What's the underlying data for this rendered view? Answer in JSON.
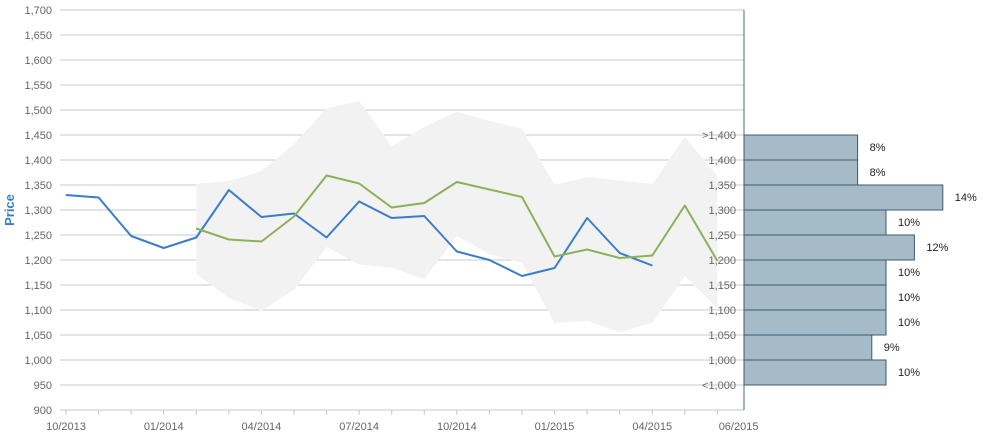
{
  "chart_data": {
    "type": "line",
    "ylabel": "Price",
    "ylim": [
      900,
      1700
    ],
    "y_ticks": [
      "900",
      "950",
      "1,000",
      "1,050",
      "1,100",
      "1,150",
      "1,200",
      "1,250",
      "1,300",
      "1,350",
      "1,400",
      "1,450",
      "1,500",
      "1,550",
      "1,600",
      "1,650",
      "1,700"
    ],
    "x_tick_labels": [
      "10/2013",
      "01/2014",
      "04/2014",
      "07/2014",
      "10/2014",
      "01/2015",
      "04/2015",
      "06/2015"
    ],
    "x_months": [
      "2013-10",
      "2013-11",
      "2013-12",
      "2014-01",
      "2014-02",
      "2014-03",
      "2014-04",
      "2014-05",
      "2014-06",
      "2014-07",
      "2014-08",
      "2014-09",
      "2014-10",
      "2014-11",
      "2014-12",
      "2015-01",
      "2015-02",
      "2015-03",
      "2015-04",
      "2015-05",
      "2015-06"
    ],
    "series": [
      {
        "color": "#3a7dc9",
        "x": [
          "2013-10",
          "2013-11",
          "2013-12",
          "2014-01",
          "2014-02",
          "2014-03",
          "2014-04",
          "2014-05",
          "2014-06",
          "2014-07",
          "2014-08",
          "2014-09",
          "2014-10",
          "2014-11",
          "2014-12",
          "2015-01",
          "2015-02",
          "2015-03",
          "2015-04"
        ],
        "values": [
          1330,
          1325,
          1248,
          1224,
          1245,
          1340,
          1286,
          1293,
          1245,
          1317,
          1284,
          1288,
          1217,
          1200,
          1168,
          1184,
          1284,
          1214,
          1189
        ]
      },
      {
        "color": "#8db05a",
        "x": [
          "2014-02",
          "2014-03",
          "2014-04",
          "2014-05",
          "2014-06",
          "2014-07",
          "2014-08",
          "2014-09",
          "2014-10",
          "2014-11",
          "2014-12",
          "2015-01",
          "2015-02",
          "2015-03",
          "2015-04",
          "2015-05",
          "2015-06"
        ],
        "values": [
          1263,
          1241,
          1237,
          1287,
          1369,
          1353,
          1305,
          1314,
          1356,
          1341,
          1326,
          1207,
          1221,
          1204,
          1209,
          1309,
          1198
        ]
      }
    ],
    "band": {
      "color": "#f2f2f2",
      "x": [
        "2014-02",
        "2014-03",
        "2014-04",
        "2014-05",
        "2014-06",
        "2014-07",
        "2014-08",
        "2014-09",
        "2014-10",
        "2014-11",
        "2014-12",
        "2015-01",
        "2015-02",
        "2015-03",
        "2015-04",
        "2015-05",
        "2015-06"
      ],
      "upper": [
        1352,
        1358,
        1378,
        1432,
        1503,
        1518,
        1428,
        1466,
        1497,
        1478,
        1463,
        1350,
        1366,
        1359,
        1352,
        1446,
        1368
      ],
      "lower": [
        1172,
        1124,
        1098,
        1140,
        1226,
        1191,
        1184,
        1162,
        1248,
        1212,
        1194,
        1074,
        1078,
        1056,
        1074,
        1168,
        1103
      ]
    },
    "distribution": {
      "color": "#a5bbc8",
      "bins": [
        {
          "label": ">1,400",
          "percent": 8,
          "text": "8%"
        },
        {
          "label": "1,400",
          "percent": 8,
          "text": "8%"
        },
        {
          "label": "1,350",
          "percent": 14,
          "text": "14%"
        },
        {
          "label": "1,300",
          "percent": 10,
          "text": "10%"
        },
        {
          "label": "1,250",
          "percent": 12,
          "text": "12%"
        },
        {
          "label": "1,200",
          "percent": 10,
          "text": "10%"
        },
        {
          "label": "1,150",
          "percent": 10,
          "text": "10%"
        },
        {
          "label": "1,100",
          "percent": 10,
          "text": "10%"
        },
        {
          "label": "1,050",
          "percent": 9,
          "text": "9%"
        },
        {
          "label": "1,000",
          "percent": 10,
          "text": "10%"
        },
        {
          "label": "<1,000",
          "percent": null,
          "text": ""
        }
      ]
    }
  }
}
